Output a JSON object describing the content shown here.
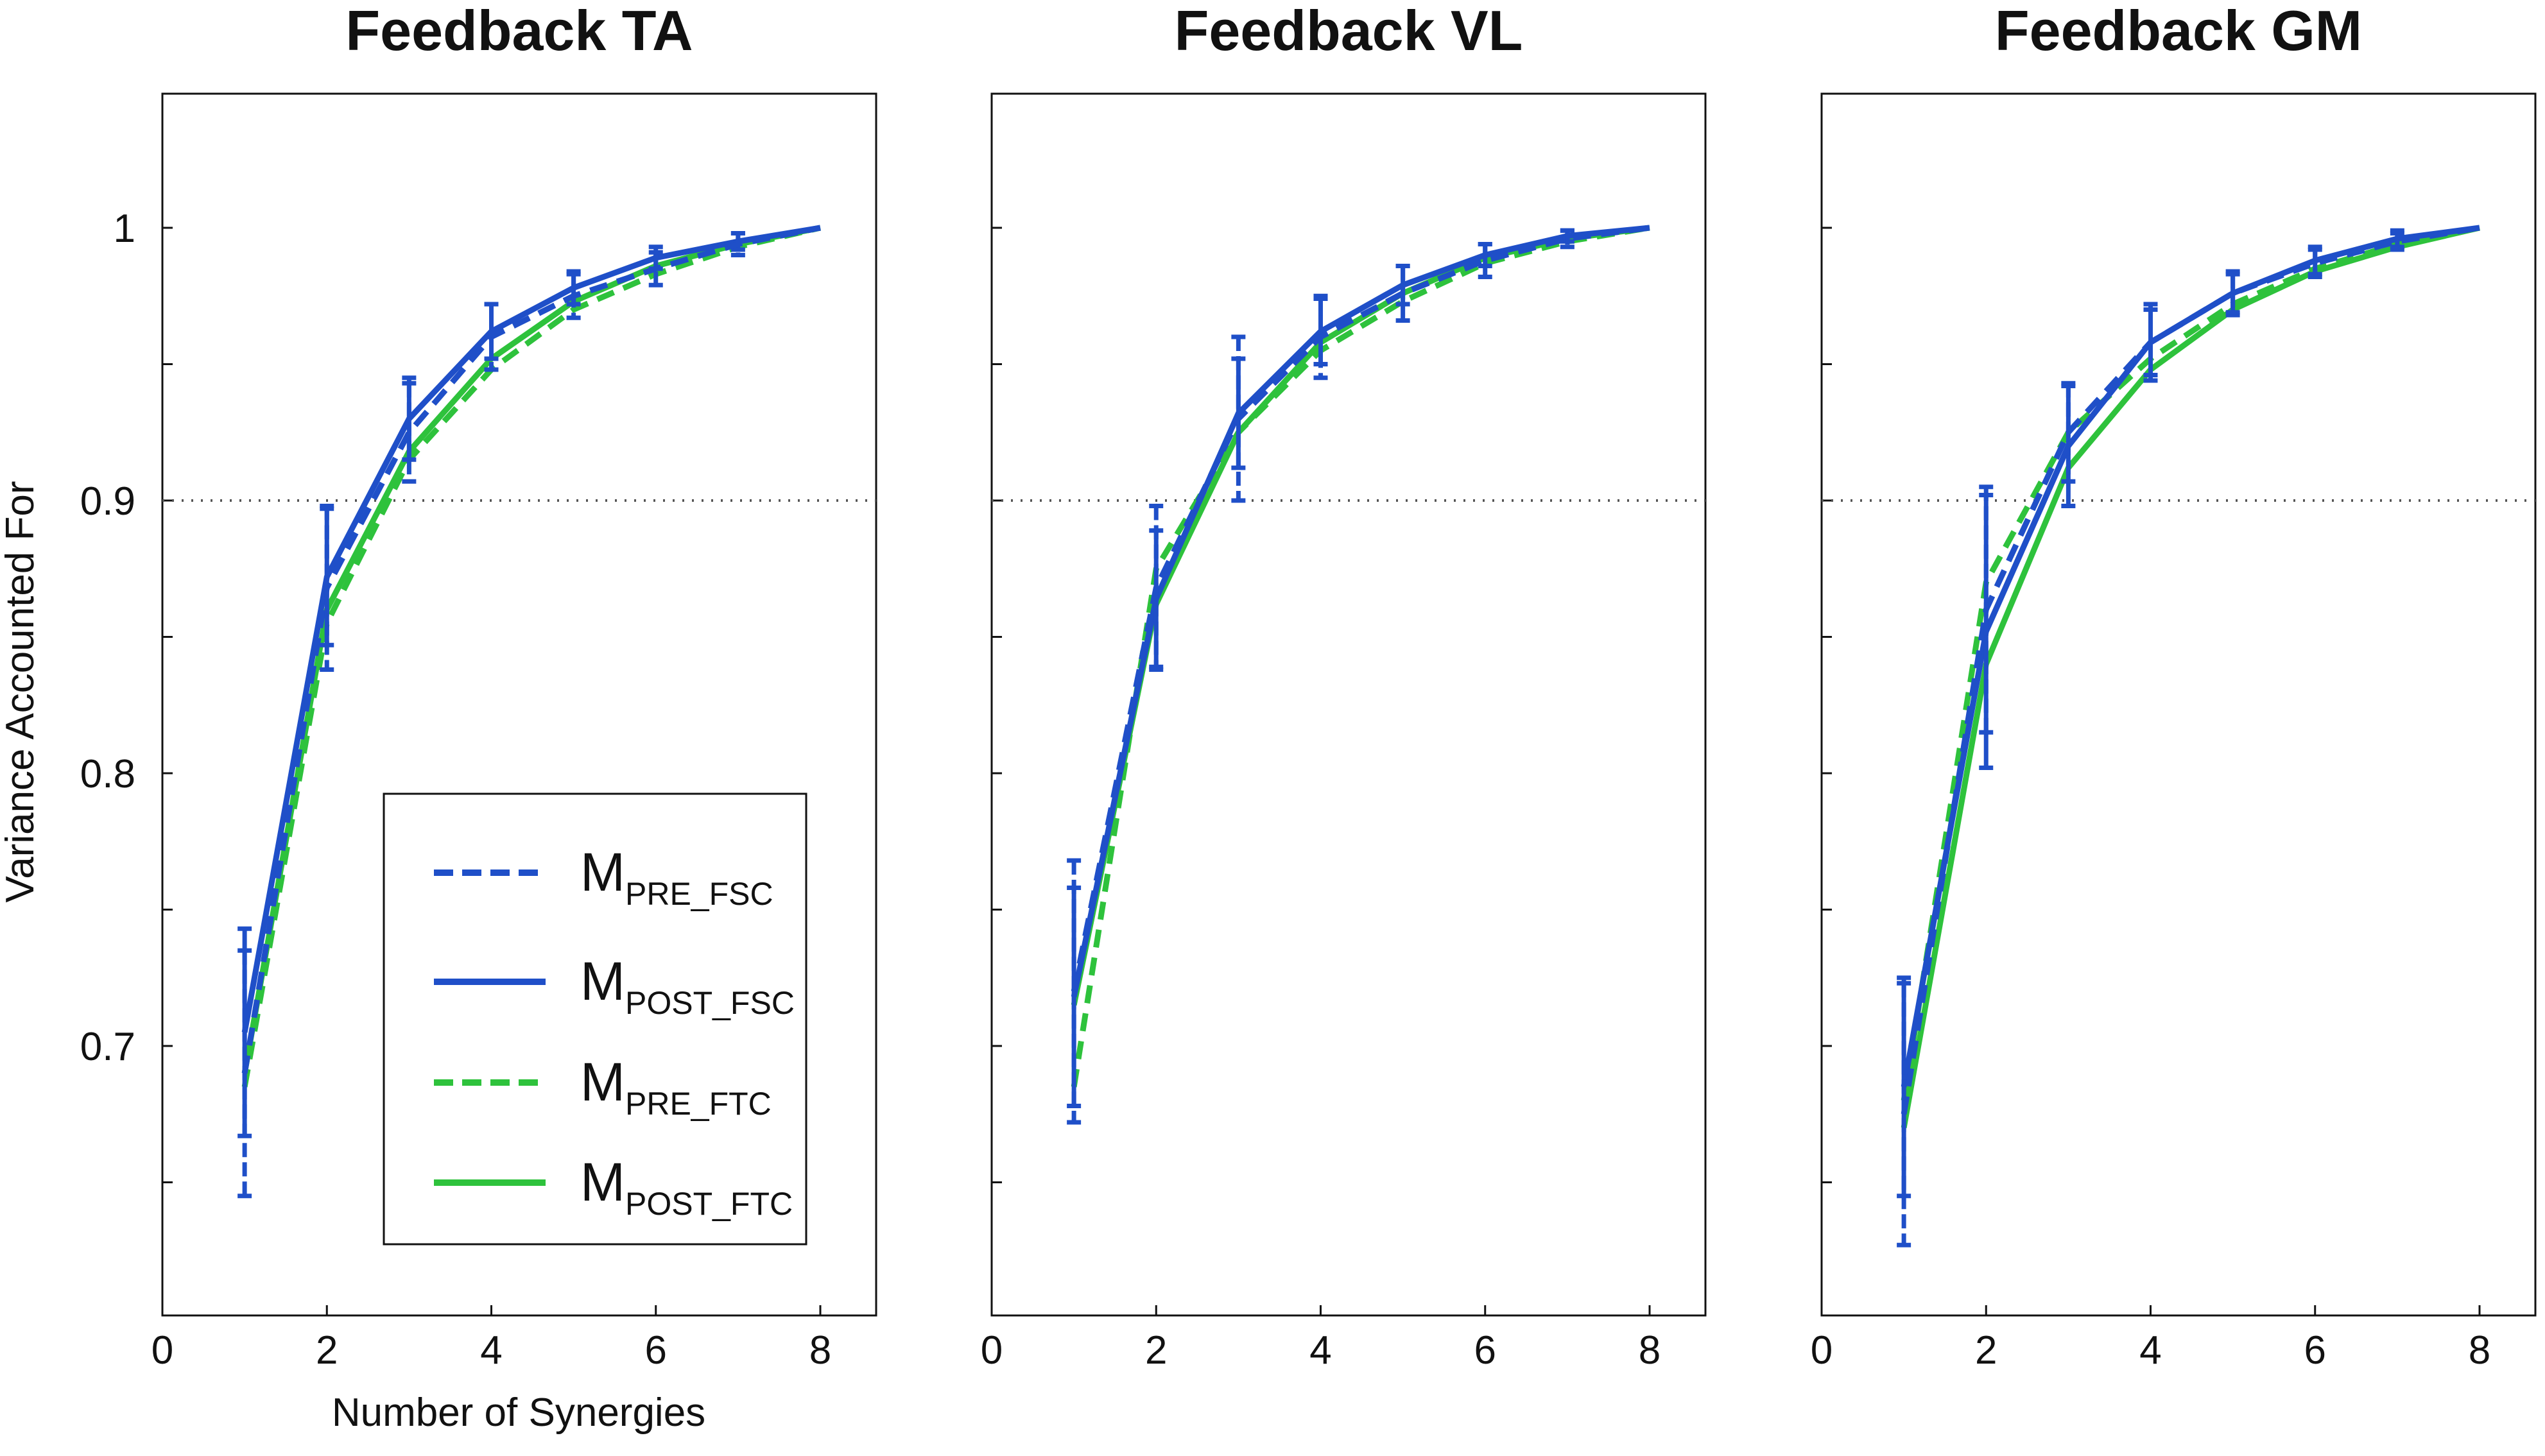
{
  "chart_data": {
    "type": "line",
    "xlabel": "Number of Synergies",
    "ylabel": "Variance Accounted For",
    "xlim": [
      0,
      8.7
    ],
    "ylim": [
      0.6,
      1.05
    ],
    "xticks": [
      0,
      2,
      4,
      6,
      8
    ],
    "yticks": [
      0.7,
      0.8,
      0.9,
      1
    ],
    "ytick_labels": [
      "0.7",
      "0.8",
      "0.9",
      "1"
    ],
    "threshold": 0.9,
    "x": [
      1,
      2,
      3,
      4,
      5,
      6,
      7,
      8
    ],
    "legend": [
      {
        "main": "M",
        "sub": "PRE_FSC",
        "color": "#1f4fc8",
        "dash": true
      },
      {
        "main": "M",
        "sub": "POST_FSC",
        "color": "#1f4fc8",
        "dash": false
      },
      {
        "main": "M",
        "sub": "PRE_FTC",
        "color": "#2ec23c",
        "dash": true
      },
      {
        "main": "M",
        "sub": "POST_FTC",
        "color": "#2ec23c",
        "dash": false
      }
    ],
    "panels": [
      {
        "title": "Feedback TA",
        "series": [
          {
            "name": "M_PRE_FSC",
            "values": [
              0.69,
              0.868,
              0.925,
              0.96,
              0.975,
              0.985,
              0.994,
              1.0
            ],
            "err": [
              0.045,
              0.03,
              0.018,
              0.012,
              0.008,
              0.006,
              0.004,
              0
            ]
          },
          {
            "name": "M_POST_FSC",
            "values": [
              0.705,
              0.872,
              0.93,
              0.962,
              0.978,
              0.989,
              0.995,
              1.0
            ],
            "err": [
              0.038,
              0.025,
              0.015,
              0.01,
              0.006,
              0.004,
              0.003,
              0
            ]
          },
          {
            "name": "M_PRE_FTC",
            "values": [
              0.685,
              0.855,
              0.915,
              0.948,
              0.97,
              0.983,
              0.993,
              1.0
            ],
            "err": [
              0,
              0,
              0,
              0,
              0,
              0,
              0,
              0
            ]
          },
          {
            "name": "M_POST_FTC",
            "values": [
              0.69,
              0.86,
              0.918,
              0.952,
              0.973,
              0.986,
              0.994,
              1.0
            ],
            "err": [
              0,
              0,
              0,
              0,
              0,
              0,
              0,
              0
            ]
          }
        ]
      },
      {
        "title": "Feedback VL",
        "series": [
          {
            "name": "M_PRE_FSC",
            "values": [
              0.72,
              0.868,
              0.93,
              0.96,
              0.976,
              0.988,
              0.996,
              1.0
            ],
            "err": [
              0.048,
              0.03,
              0.03,
              0.015,
              0.01,
              0.006,
              0.003,
              0
            ]
          },
          {
            "name": "M_POST_FSC",
            "values": [
              0.718,
              0.864,
              0.932,
              0.962,
              0.979,
              0.99,
              0.997,
              1.0
            ],
            "err": [
              0.04,
              0.025,
              0.02,
              0.012,
              0.007,
              0.004,
              0.002,
              0
            ]
          },
          {
            "name": "M_PRE_FTC",
            "values": [
              0.685,
              0.875,
              0.925,
              0.955,
              0.973,
              0.987,
              0.995,
              1.0
            ],
            "err": [
              0,
              0,
              0,
              0,
              0,
              0,
              0,
              0
            ]
          },
          {
            "name": "M_POST_FTC",
            "values": [
              0.715,
              0.862,
              0.925,
              0.958,
              0.976,
              0.989,
              0.996,
              1.0
            ],
            "err": [
              0,
              0,
              0,
              0,
              0,
              0,
              0,
              0
            ]
          }
        ]
      },
      {
        "title": "Feedback GM",
        "series": [
          {
            "name": "M_PRE_FSC",
            "values": [
              0.675,
              0.86,
              0.925,
              0.958,
              0.976,
              0.987,
              0.995,
              1.0
            ],
            "err": [
              0.048,
              0.045,
              0.018,
              0.012,
              0.007,
              0.005,
              0.003,
              0
            ]
          },
          {
            "name": "M_POST_FSC",
            "values": [
              0.685,
              0.852,
              0.92,
              0.958,
              0.976,
              0.988,
              0.996,
              1.0
            ],
            "err": [
              0.04,
              0.05,
              0.022,
              0.014,
              0.008,
              0.005,
              0.003,
              0
            ]
          },
          {
            "name": "M_PRE_FTC",
            "values": [
              0.68,
              0.87,
              0.925,
              0.952,
              0.972,
              0.985,
              0.994,
              1.0
            ],
            "err": [
              0,
              0,
              0,
              0,
              0,
              0,
              0,
              0
            ]
          },
          {
            "name": "M_POST_FTC",
            "values": [
              0.67,
              0.84,
              0.912,
              0.948,
              0.97,
              0.984,
              0.993,
              1.0
            ],
            "err": [
              0,
              0,
              0,
              0,
              0,
              0,
              0,
              0
            ]
          }
        ]
      }
    ]
  }
}
